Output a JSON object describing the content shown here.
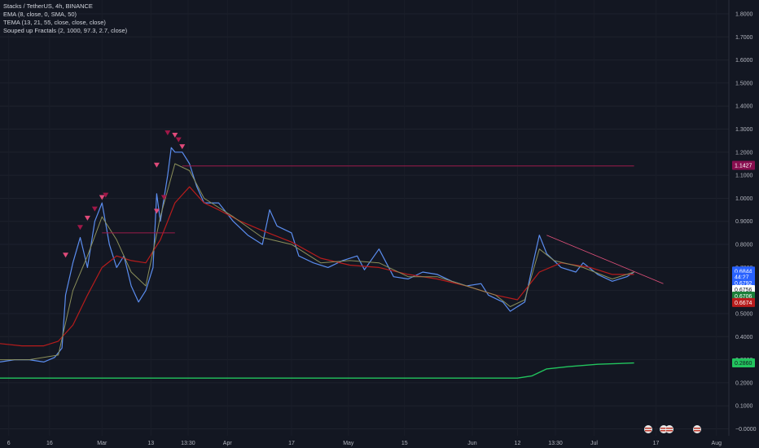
{
  "legend": {
    "line1": "Stacks / TetherUS, 4h, BINANCE",
    "line2": "EMA (8, close, 0, SMA, 50)",
    "line3": "TEMA (13, 21, 55, close, close, close)",
    "line4": "Souped up Fractals (2, 1000, 97.3, 2.7, close)"
  },
  "colors": {
    "background": "#131722",
    "price": "#2962ff",
    "price_light": "#5b8def",
    "ema": "#b71c1c",
    "tema_fast": "#8b8f5a",
    "green_line": "#22c55e",
    "resistance": "#9c1b4a",
    "fractal_up": "#e04a7a",
    "fractal_dark": "#a01848",
    "trend": "#e0507a"
  },
  "chart_data": {
    "type": "line",
    "y_ticks": [
      "1.8000",
      "1.7000",
      "1.6000",
      "1.5000",
      "1.4000",
      "1.3000",
      "1.2000",
      "1.1000",
      "1.0000",
      "0.9000",
      "0.8000",
      "0.7000",
      "0.6000",
      "0.5000",
      "0.4000",
      "0.3000",
      "0.2000",
      "0.1000",
      "−0.0000"
    ],
    "x_ticks": [
      "6",
      "16",
      "Mar",
      "13",
      "13:30",
      "Apr",
      "17",
      "May",
      "15",
      "Jun",
      "12",
      "13:30",
      "Jul",
      "17",
      "Aug"
    ],
    "ylim": [
      -0.03,
      1.86
    ],
    "price_tags": [
      {
        "label": "1.1427",
        "value": 1.1427,
        "bg": "#880e4f",
        "fg": "#ffffff"
      },
      {
        "label": "0.6844",
        "value": 0.6844,
        "bg": "#2962ff",
        "fg": "#ffffff"
      },
      {
        "label": "44:27",
        "value": 0.658,
        "bg": "#2962ff",
        "fg": "#ffffff"
      },
      {
        "label": "0.6792",
        "value": 0.632,
        "bg": "#2962ff",
        "fg": "#ffffff"
      },
      {
        "label": "0.6756",
        "value": 0.604,
        "bg": "#ffffff",
        "fg": "#131722"
      },
      {
        "label": "0.6706",
        "value": 0.576,
        "bg": "#1b7f3a",
        "fg": "#ffffff"
      },
      {
        "label": "0.6674",
        "value": 0.548,
        "bg": "#b71c1c",
        "fg": "#ffffff"
      },
      {
        "label": "0.2860",
        "value": 0.286,
        "bg": "#22c55e",
        "fg": "#131722"
      }
    ],
    "series": [
      {
        "type": "price",
        "points": [
          [
            0,
            0.29
          ],
          [
            0.02,
            0.3
          ],
          [
            0.04,
            0.3
          ],
          [
            0.06,
            0.29
          ],
          [
            0.075,
            0.31
          ],
          [
            0.085,
            0.35
          ],
          [
            0.09,
            0.58
          ],
          [
            0.1,
            0.72
          ],
          [
            0.11,
            0.83
          ],
          [
            0.12,
            0.7
          ],
          [
            0.13,
            0.9
          ],
          [
            0.14,
            0.98
          ],
          [
            0.15,
            0.8
          ],
          [
            0.16,
            0.7
          ],
          [
            0.17,
            0.75
          ],
          [
            0.18,
            0.62
          ],
          [
            0.19,
            0.55
          ],
          [
            0.2,
            0.6
          ],
          [
            0.21,
            0.7
          ],
          [
            0.215,
            1.02
          ],
          [
            0.22,
            0.9
          ],
          [
            0.23,
            1.1
          ],
          [
            0.235,
            1.22
          ],
          [
            0.24,
            1.2
          ],
          [
            0.25,
            1.2
          ],
          [
            0.26,
            1.15
          ],
          [
            0.27,
            1.05
          ],
          [
            0.28,
            0.98
          ],
          [
            0.3,
            0.98
          ],
          [
            0.32,
            0.9
          ],
          [
            0.34,
            0.84
          ],
          [
            0.36,
            0.8
          ],
          [
            0.37,
            0.95
          ],
          [
            0.38,
            0.88
          ],
          [
            0.4,
            0.85
          ],
          [
            0.41,
            0.75
          ],
          [
            0.43,
            0.72
          ],
          [
            0.45,
            0.7
          ],
          [
            0.47,
            0.73
          ],
          [
            0.49,
            0.75
          ],
          [
            0.5,
            0.69
          ],
          [
            0.52,
            0.78
          ],
          [
            0.54,
            0.66
          ],
          [
            0.56,
            0.65
          ],
          [
            0.58,
            0.68
          ],
          [
            0.6,
            0.67
          ],
          [
            0.62,
            0.64
          ],
          [
            0.64,
            0.62
          ],
          [
            0.66,
            0.63
          ],
          [
            0.67,
            0.58
          ],
          [
            0.69,
            0.55
          ],
          [
            0.7,
            0.51
          ],
          [
            0.72,
            0.55
          ],
          [
            0.73,
            0.7
          ],
          [
            0.74,
            0.84
          ],
          [
            0.75,
            0.76
          ],
          [
            0.77,
            0.7
          ],
          [
            0.79,
            0.68
          ],
          [
            0.8,
            0.72
          ],
          [
            0.82,
            0.67
          ],
          [
            0.84,
            0.64
          ],
          [
            0.86,
            0.66
          ],
          [
            0.87,
            0.68
          ]
        ]
      },
      {
        "type": "ema",
        "points": [
          [
            0,
            0.37
          ],
          [
            0.03,
            0.36
          ],
          [
            0.06,
            0.36
          ],
          [
            0.08,
            0.38
          ],
          [
            0.1,
            0.45
          ],
          [
            0.12,
            0.58
          ],
          [
            0.14,
            0.7
          ],
          [
            0.16,
            0.75
          ],
          [
            0.18,
            0.73
          ],
          [
            0.2,
            0.72
          ],
          [
            0.22,
            0.82
          ],
          [
            0.24,
            0.98
          ],
          [
            0.26,
            1.05
          ],
          [
            0.28,
            0.98
          ],
          [
            0.3,
            0.95
          ],
          [
            0.33,
            0.9
          ],
          [
            0.36,
            0.86
          ],
          [
            0.4,
            0.81
          ],
          [
            0.44,
            0.74
          ],
          [
            0.48,
            0.71
          ],
          [
            0.52,
            0.7
          ],
          [
            0.56,
            0.67
          ],
          [
            0.6,
            0.65
          ],
          [
            0.64,
            0.62
          ],
          [
            0.68,
            0.58
          ],
          [
            0.71,
            0.56
          ],
          [
            0.74,
            0.68
          ],
          [
            0.77,
            0.72
          ],
          [
            0.81,
            0.7
          ],
          [
            0.84,
            0.67
          ],
          [
            0.87,
            0.67
          ]
        ]
      },
      {
        "type": "tema_fast",
        "points": [
          [
            0,
            0.3
          ],
          [
            0.04,
            0.3
          ],
          [
            0.08,
            0.32
          ],
          [
            0.1,
            0.6
          ],
          [
            0.12,
            0.75
          ],
          [
            0.14,
            0.92
          ],
          [
            0.16,
            0.82
          ],
          [
            0.18,
            0.68
          ],
          [
            0.2,
            0.62
          ],
          [
            0.22,
            0.92
          ],
          [
            0.24,
            1.15
          ],
          [
            0.26,
            1.12
          ],
          [
            0.28,
            1.0
          ],
          [
            0.32,
            0.92
          ],
          [
            0.36,
            0.83
          ],
          [
            0.4,
            0.8
          ],
          [
            0.44,
            0.72
          ],
          [
            0.48,
            0.73
          ],
          [
            0.52,
            0.72
          ],
          [
            0.56,
            0.66
          ],
          [
            0.6,
            0.66
          ],
          [
            0.64,
            0.62
          ],
          [
            0.68,
            0.58
          ],
          [
            0.7,
            0.53
          ],
          [
            0.72,
            0.56
          ],
          [
            0.74,
            0.78
          ],
          [
            0.76,
            0.73
          ],
          [
            0.8,
            0.7
          ],
          [
            0.84,
            0.65
          ],
          [
            0.87,
            0.68
          ]
        ]
      },
      {
        "type": "green",
        "points": [
          [
            0,
            0.22
          ],
          [
            0.2,
            0.22
          ],
          [
            0.4,
            0.22
          ],
          [
            0.6,
            0.22
          ],
          [
            0.68,
            0.22
          ],
          [
            0.71,
            0.22
          ],
          [
            0.73,
            0.23
          ],
          [
            0.75,
            0.26
          ],
          [
            0.78,
            0.27
          ],
          [
            0.82,
            0.28
          ],
          [
            0.87,
            0.286
          ]
        ]
      },
      {
        "type": "resistance",
        "points": [
          [
            0.25,
            1.14
          ],
          [
            0.87,
            1.14
          ]
        ]
      },
      {
        "type": "resistance",
        "points": [
          [
            0.14,
            0.85
          ],
          [
            0.24,
            0.85
          ]
        ]
      },
      {
        "type": "trend",
        "points": [
          [
            0.75,
            0.84
          ],
          [
            0.91,
            0.63
          ]
        ]
      }
    ],
    "fractals": [
      [
        0.09,
        0.75
      ],
      [
        0.11,
        0.87
      ],
      [
        0.12,
        0.91
      ],
      [
        0.13,
        0.95
      ],
      [
        0.14,
        1.0
      ],
      [
        0.145,
        1.01
      ],
      [
        0.215,
        1.14
      ],
      [
        0.23,
        1.28
      ],
      [
        0.24,
        1.27
      ],
      [
        0.245,
        1.25
      ],
      [
        0.25,
        1.22
      ],
      [
        0.225,
        1.0
      ],
      [
        0.215,
        0.94
      ]
    ]
  }
}
